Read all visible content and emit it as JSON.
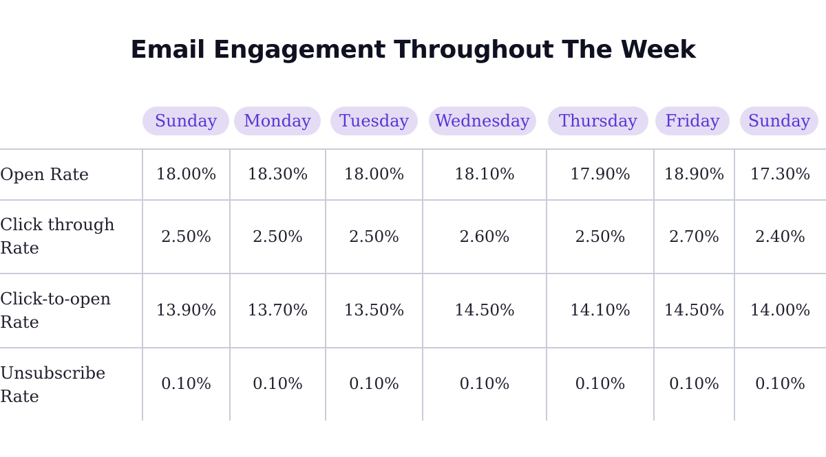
{
  "colors": {
    "pill_background": "#e4dcf4",
    "pill_text": "#5a34d6",
    "grid": "#c9ccd8",
    "title": "#0f1020"
  },
  "chart_data": {
    "type": "table",
    "title": "Email Engagement Throughout The Week",
    "columns": [
      "Sunday",
      "Monday",
      "Tuesday",
      "Wednesday",
      "Thursday",
      "Friday",
      "Sunday"
    ],
    "rows": [
      {
        "label": "Open Rate",
        "values": [
          "18.00%",
          "18.30%",
          "18.00%",
          "18.10%",
          "17.90%",
          "18.90%",
          "17.30%"
        ]
      },
      {
        "label": "Click through Rate",
        "values": [
          "2.50%",
          "2.50%",
          "2.50%",
          "2.60%",
          "2.50%",
          "2.70%",
          "2.40%"
        ]
      },
      {
        "label": "Click-to-open Rate",
        "values": [
          "13.90%",
          "13.70%",
          "13.50%",
          "14.50%",
          "14.10%",
          "14.50%",
          "14.00%"
        ]
      },
      {
        "label": "Unsubscribe Rate",
        "values": [
          "0.10%",
          "0.10%",
          "0.10%",
          "0.10%",
          "0.10%",
          "0.10%",
          "0.10%"
        ]
      }
    ]
  }
}
